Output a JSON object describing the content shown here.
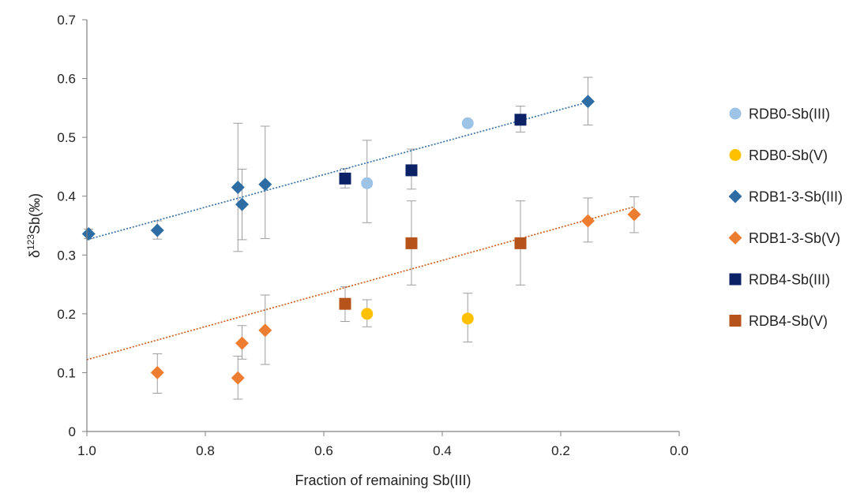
{
  "chart_data": {
    "type": "scatter",
    "xlabel": "Fraction of remaining Sb(III)",
    "ylabel_parts": [
      "δ",
      "123",
      "Sb(‰)"
    ],
    "xlim": [
      1.0,
      0.0
    ],
    "ylim": [
      0,
      0.7
    ],
    "x_reversed": true,
    "x_ticks": [
      "1.0",
      "0.8",
      "0.6",
      "0.4",
      "0.2",
      "0.0"
    ],
    "x_tick_values": [
      1.0,
      0.8,
      0.6,
      0.4,
      0.2,
      0.0
    ],
    "y_ticks": [
      "0",
      "0.1",
      "0.2",
      "0.3",
      "0.4",
      "0.5",
      "0.6",
      "0.7"
    ],
    "y_tick_values": [
      0,
      0.1,
      0.2,
      0.3,
      0.4,
      0.5,
      0.6,
      0.7
    ],
    "grid": false,
    "legend_position": "right",
    "series": [
      {
        "name": "RDB0-Sb(III)",
        "marker": "circle",
        "color": "#9DC3E6",
        "points": [
          {
            "x": 0.527,
            "y": 0.422,
            "err_low": 0.355,
            "err_high": 0.495
          },
          {
            "x": 0.357,
            "y": 0.524,
            "err_low": null,
            "err_high": null
          }
        ]
      },
      {
        "name": "RDB0-Sb(V)",
        "marker": "circle",
        "color": "#FFC000",
        "points": [
          {
            "x": 0.527,
            "y": 0.2,
            "err_low": 0.178,
            "err_high": 0.224
          },
          {
            "x": 0.357,
            "y": 0.192,
            "err_low": 0.152,
            "err_high": 0.235
          }
        ]
      },
      {
        "name": "RDB1-3-Sb(III)",
        "marker": "diamond",
        "color": "#2E6DA4",
        "points": [
          {
            "x": 0.997,
            "y": 0.336,
            "err_low": 0.328,
            "err_high": 0.344
          },
          {
            "x": 0.881,
            "y": 0.342,
            "err_low": 0.327,
            "err_high": 0.358
          },
          {
            "x": 0.745,
            "y": 0.415,
            "err_low": 0.306,
            "err_high": 0.524
          },
          {
            "x": 0.738,
            "y": 0.386,
            "err_low": 0.326,
            "err_high": 0.446
          },
          {
            "x": 0.699,
            "y": 0.42,
            "err_low": 0.328,
            "err_high": 0.519
          },
          {
            "x": 0.154,
            "y": 0.561,
            "err_low": 0.521,
            "err_high": 0.602
          }
        ]
      },
      {
        "name": "RDB1-3-Sb(V)",
        "marker": "diamond",
        "color": "#ED7D31",
        "points": [
          {
            "x": 0.881,
            "y": 0.1,
            "err_low": 0.065,
            "err_high": 0.132
          },
          {
            "x": 0.745,
            "y": 0.091,
            "err_low": 0.055,
            "err_high": 0.128
          },
          {
            "x": 0.738,
            "y": 0.15,
            "err_low": 0.123,
            "err_high": 0.18
          },
          {
            "x": 0.699,
            "y": 0.172,
            "err_low": 0.114,
            "err_high": 0.232
          },
          {
            "x": 0.154,
            "y": 0.358,
            "err_low": 0.322,
            "err_high": 0.397
          },
          {
            "x": 0.076,
            "y": 0.369,
            "err_low": 0.338,
            "err_high": 0.399
          }
        ]
      },
      {
        "name": "RDB4-Sb(III)",
        "marker": "square",
        "color": "#0B2366",
        "points": [
          {
            "x": 0.564,
            "y": 0.43,
            "err_low": 0.414,
            "err_high": 0.447
          },
          {
            "x": 0.452,
            "y": 0.444,
            "err_low": 0.412,
            "err_high": 0.48
          },
          {
            "x": 0.268,
            "y": 0.53,
            "err_low": 0.509,
            "err_high": 0.553
          }
        ]
      },
      {
        "name": "RDB4-Sb(V)",
        "marker": "square",
        "color": "#B5531A",
        "points": [
          {
            "x": 0.564,
            "y": 0.217,
            "err_low": 0.187,
            "err_high": 0.246
          },
          {
            "x": 0.452,
            "y": 0.32,
            "err_low": 0.249,
            "err_high": 0.392
          },
          {
            "x": 0.268,
            "y": 0.32,
            "err_low": 0.249,
            "err_high": 0.392
          }
        ]
      }
    ],
    "trendlines": [
      {
        "color": "#2E6DA4",
        "x": [
          1.0,
          0.154
        ],
        "y": [
          0.326,
          0.56
        ]
      },
      {
        "color": "#C65911",
        "x": [
          1.0,
          0.076
        ],
        "y": [
          0.122,
          0.382
        ]
      }
    ],
    "errorbar_color": "#9E9E9E"
  }
}
